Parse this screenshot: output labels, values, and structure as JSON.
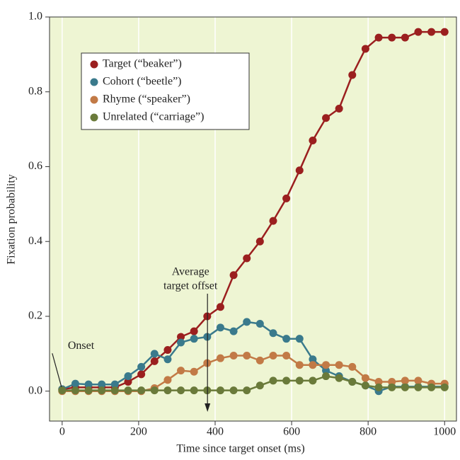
{
  "chart_data": {
    "type": "line",
    "xlabel": "Time since target onset (ms)",
    "ylabel": "Fixation probability",
    "x": [
      0,
      34.5,
      69,
      103.4,
      137.9,
      172.4,
      206.9,
      241.4,
      275.9,
      310.3,
      344.8,
      379.3,
      413.8,
      448.3,
      482.8,
      517.2,
      551.7,
      586.2,
      620.7,
      655.2,
      689.7,
      724.1,
      758.6,
      793.1,
      827.6,
      862.1,
      896.6,
      931,
      965.5,
      1000
    ],
    "series": [
      {
        "name": "Target (“beaker”)",
        "color": "#9b1f1f",
        "values": [
          0.005,
          0.01,
          0.01,
          0.01,
          0.01,
          0.025,
          0.045,
          0.08,
          0.11,
          0.145,
          0.16,
          0.2,
          0.225,
          0.31,
          0.355,
          0.4,
          0.455,
          0.515,
          0.59,
          0.67,
          0.73,
          0.755,
          0.845,
          0.915,
          0.945,
          0.945,
          0.945,
          0.96,
          0.96,
          0.96
        ]
      },
      {
        "name": "Cohort (“beetle”)",
        "color": "#3a7a8c",
        "values": [
          0.005,
          0.02,
          0.018,
          0.018,
          0.018,
          0.04,
          0.065,
          0.1,
          0.085,
          0.13,
          0.14,
          0.145,
          0.17,
          0.16,
          0.185,
          0.18,
          0.155,
          0.14,
          0.14,
          0.085,
          0.055,
          0.04,
          0.025,
          0.015,
          0.0,
          0.012,
          0.012,
          0.012,
          0.012,
          0.012
        ]
      },
      {
        "name": "Rhyme (“speaker”)",
        "color": "#c27a46",
        "values": [
          0,
          0,
          0,
          0,
          0,
          0,
          0,
          0.008,
          0.03,
          0.055,
          0.052,
          0.075,
          0.088,
          0.095,
          0.095,
          0.082,
          0.095,
          0.095,
          0.07,
          0.07,
          0.07,
          0.07,
          0.065,
          0.035,
          0.025,
          0.025,
          0.028,
          0.028,
          0.02,
          0.02
        ]
      },
      {
        "name": "Unrelated (“carriage”)",
        "color": "#6a7a3a",
        "values": [
          0.002,
          0.002,
          0.002,
          0.002,
          0.002,
          0.002,
          0.002,
          0.002,
          0.002,
          0.002,
          0.002,
          0.002,
          0.002,
          0.002,
          0.002,
          0.015,
          0.028,
          0.028,
          0.028,
          0.028,
          0.04,
          0.035,
          0.025,
          0.015,
          0.01,
          0.01,
          0.01,
          0.01,
          0.01,
          0.01
        ]
      }
    ],
    "xlim": [
      -33,
      1031
    ],
    "ylim": [
      -0.08,
      1.0
    ],
    "xticks": [
      0,
      200,
      400,
      600,
      800,
      1000
    ],
    "yticks": [
      {
        "value": 0,
        "label": "0.0"
      },
      0.2,
      0.4,
      0.6,
      0.8,
      {
        "value": 1,
        "label": "1.0"
      }
    ],
    "grid": true,
    "legend": "upper left",
    "annotations": [
      {
        "text": "Onset",
        "x": 0
      },
      {
        "text": [
          "Average",
          "target offset"
        ],
        "x": 380
      }
    ]
  }
}
